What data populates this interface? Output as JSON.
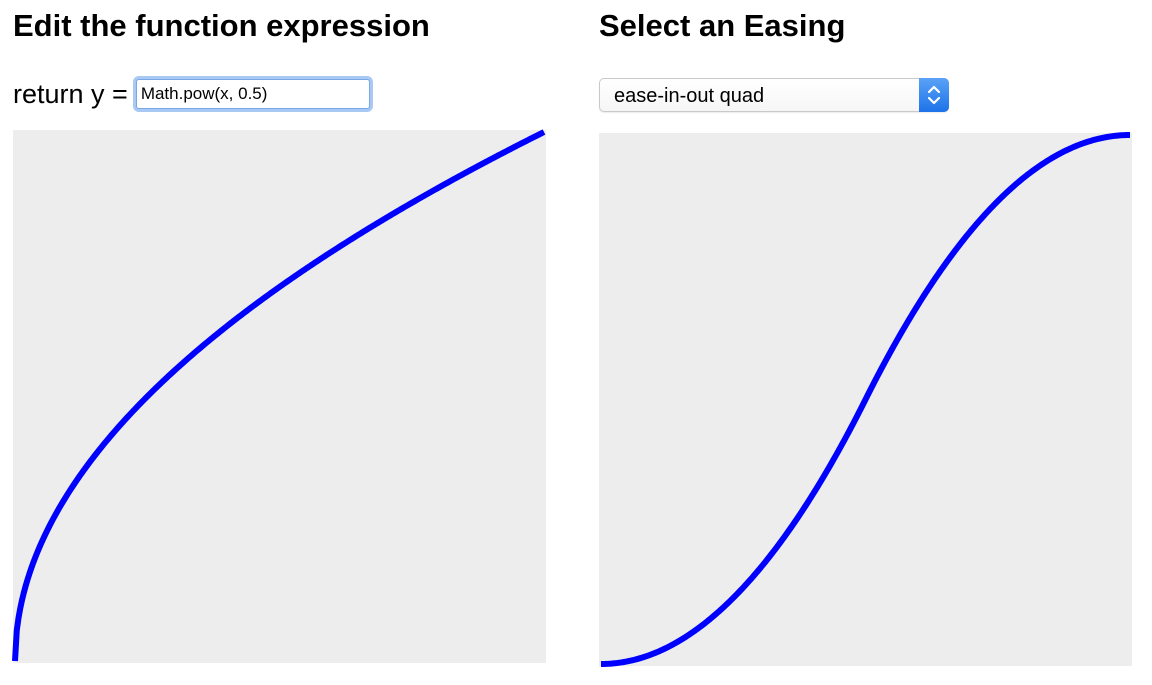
{
  "left_panel": {
    "heading": "Edit the function expression",
    "expression_prefix": "return y =",
    "expression_value": "Math.pow(x, 0.5)"
  },
  "right_panel": {
    "heading": "Select an Easing",
    "easing_selected": "ease-in-out quad"
  },
  "colors": {
    "curve": "#0000ff",
    "plot_background": "#ededee",
    "focus_ring": "#a9c9f5"
  },
  "chart_data": [
    {
      "type": "line",
      "function": "Math.pow(x, 0.5)",
      "xlim": [
        0,
        1
      ],
      "ylim": [
        0,
        1
      ],
      "grid": false,
      "series": [
        {
          "x": [
            0,
            0.01,
            0.05,
            0.1,
            0.2,
            0.3,
            0.4,
            0.5,
            0.6,
            0.7,
            0.8,
            0.9,
            1
          ],
          "values": [
            0,
            0.1,
            0.224,
            0.316,
            0.447,
            0.548,
            0.632,
            0.707,
            0.775,
            0.837,
            0.894,
            0.949,
            1
          ],
          "color": "#0000ff"
        }
      ]
    },
    {
      "type": "line",
      "easing": "ease-in-out quad",
      "xlim": [
        0,
        1
      ],
      "ylim": [
        0,
        1
      ],
      "grid": false,
      "series": [
        {
          "x": [
            0,
            0.1,
            0.2,
            0.3,
            0.4,
            0.5,
            0.6,
            0.7,
            0.8,
            0.9,
            1
          ],
          "values": [
            0,
            0.02,
            0.08,
            0.18,
            0.32,
            0.5,
            0.68,
            0.82,
            0.92,
            0.98,
            1
          ],
          "color": "#0000ff"
        }
      ]
    }
  ]
}
